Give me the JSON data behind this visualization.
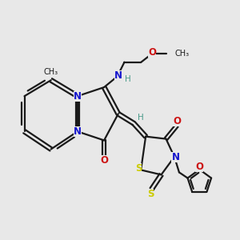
{
  "bg_color": "#e8e8e8",
  "bond_color": "#1a1a1a",
  "N_color": "#1414cc",
  "O_color": "#cc1414",
  "S_color": "#cccc00",
  "H_color": "#4a9a8a",
  "figsize": [
    3.0,
    3.0
  ],
  "dpi": 100,
  "xlim": [
    0,
    10
  ],
  "ylim": [
    0,
    10
  ]
}
